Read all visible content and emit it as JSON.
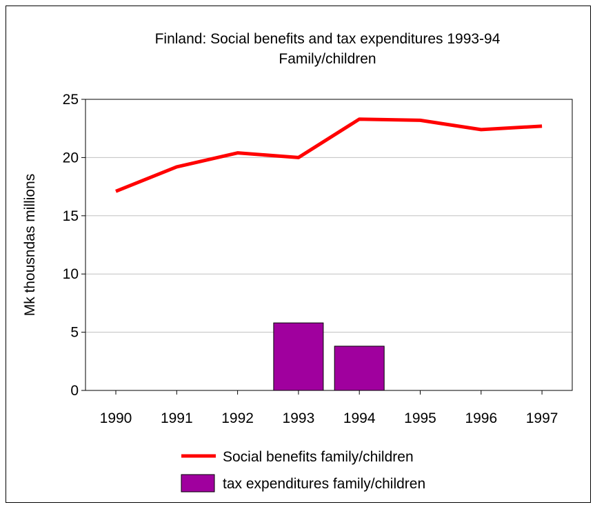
{
  "chart_data": {
    "type": "bar",
    "title": "Finland: Social benefits and tax expenditures 1993-94",
    "subtitle": "Family/children",
    "ylabel": "Mk thousndas millions",
    "xlabel": "",
    "ylim": [
      0,
      25
    ],
    "yticks": [
      "0",
      "5",
      "10",
      "15",
      "20",
      "25"
    ],
    "categories": [
      "1990",
      "1991",
      "1992",
      "1993",
      "1994",
      "1995",
      "1996",
      "1997"
    ],
    "grid": true,
    "legend_position": "bottom",
    "series": [
      {
        "name": "Social benefits family/children",
        "type": "line",
        "color": "#ff0000",
        "values": [
          17.1,
          19.2,
          20.4,
          20.0,
          23.3,
          23.2,
          22.4,
          22.7
        ]
      },
      {
        "name": "tax expenditures family/children",
        "type": "bar",
        "color": "#a0009e",
        "values": [
          null,
          null,
          null,
          5.8,
          3.8,
          null,
          null,
          null
        ]
      }
    ]
  }
}
